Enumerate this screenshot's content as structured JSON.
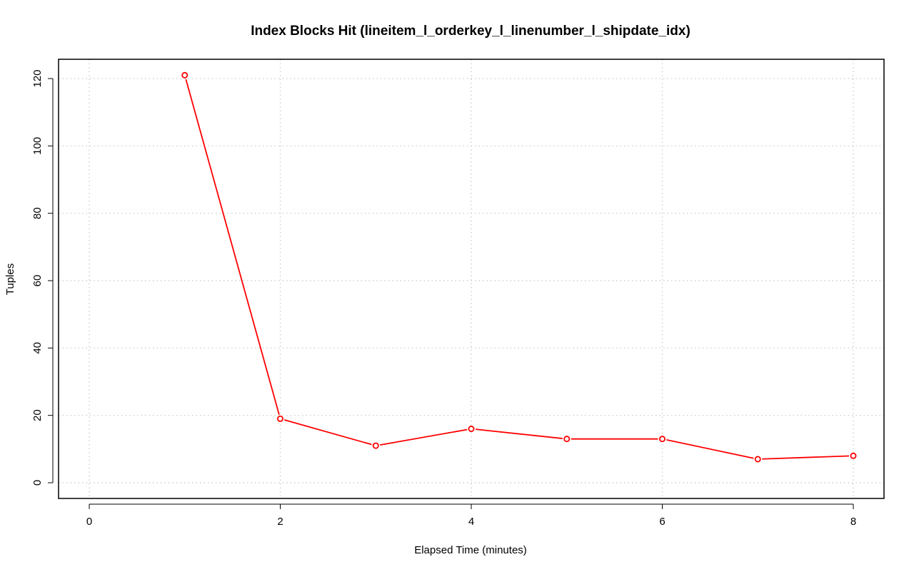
{
  "chart_data": {
    "type": "line",
    "title": "Index Blocks Hit (lineitem_l_orderkey_l_linenumber_l_shipdate_idx)",
    "xlabel": "Elapsed Time (minutes)",
    "ylabel": "Tuples",
    "xlim": [
      0,
      8
    ],
    "ylim": [
      0,
      120
    ],
    "x_ticks": [
      0,
      2,
      4,
      6,
      8
    ],
    "y_ticks": [
      0,
      20,
      40,
      60,
      80,
      100,
      120
    ],
    "grid": true,
    "series": [
      {
        "color": "#ff0000",
        "marker": "open-circle",
        "x": [
          1,
          2,
          3,
          4,
          5,
          6,
          7,
          8
        ],
        "y": [
          121,
          19,
          11,
          16,
          13,
          13,
          7,
          8
        ]
      }
    ]
  }
}
